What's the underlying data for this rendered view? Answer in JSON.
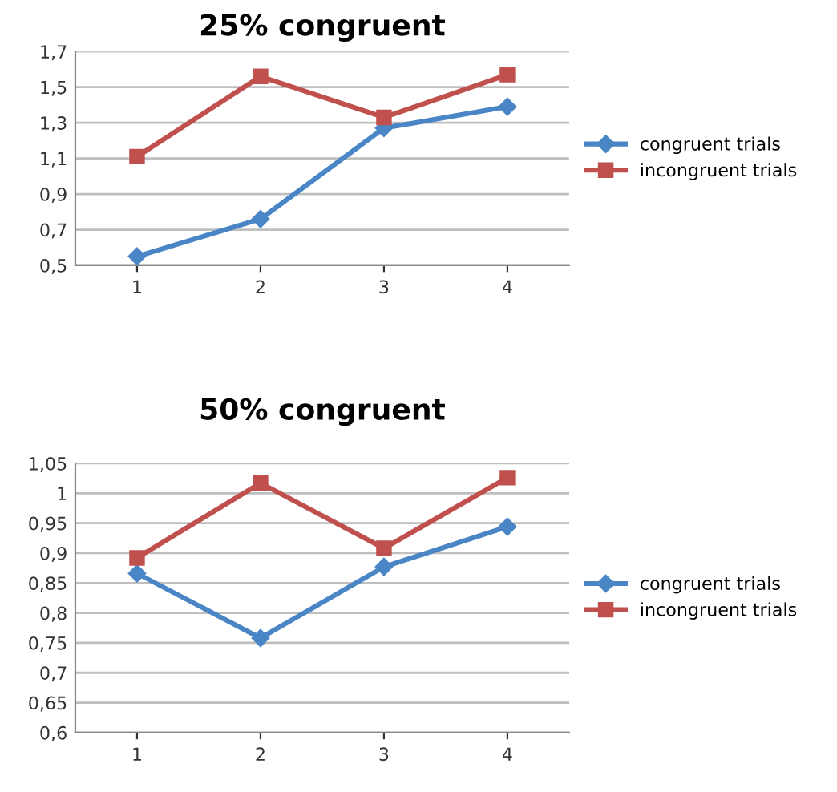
{
  "chart_data": [
    {
      "type": "line",
      "title": "25% congruent",
      "categories": [
        "1",
        "2",
        "3",
        "4"
      ],
      "ylim": [
        0.5,
        1.7
      ],
      "yticks": [
        {
          "value": 0.5,
          "label": "0,5"
        },
        {
          "value": 0.7,
          "label": "0,7"
        },
        {
          "value": 0.9,
          "label": "0,9"
        },
        {
          "value": 1.1,
          "label": "1,1"
        },
        {
          "value": 1.3,
          "label": "1,3"
        },
        {
          "value": 1.5,
          "label": "1,5"
        },
        {
          "value": 1.7,
          "label": "1,7"
        }
      ],
      "grid": "y",
      "legend": "right",
      "series": [
        {
          "name": "congruent trials",
          "color": "#4a86c5",
          "marker": "diamond",
          "values": [
            0.55,
            0.76,
            1.27,
            1.39
          ]
        },
        {
          "name": "incongruent trials",
          "color": "#c0504d",
          "marker": "square",
          "values": [
            1.11,
            1.56,
            1.33,
            1.57
          ]
        }
      ]
    },
    {
      "type": "line",
      "title": "50% congruent",
      "categories": [
        "1",
        "2",
        "3",
        "4"
      ],
      "ylim": [
        0.6,
        1.05
      ],
      "yticks": [
        {
          "value": 0.6,
          "label": "0,6"
        },
        {
          "value": 0.65,
          "label": "0,65"
        },
        {
          "value": 0.7,
          "label": "0,7"
        },
        {
          "value": 0.75,
          "label": "0,75"
        },
        {
          "value": 0.8,
          "label": "0,8"
        },
        {
          "value": 0.85,
          "label": "0,85"
        },
        {
          "value": 0.9,
          "label": "0,9"
        },
        {
          "value": 0.95,
          "label": "0,95"
        },
        {
          "value": 1.0,
          "label": "1"
        },
        {
          "value": 1.05,
          "label": "1,05"
        }
      ],
      "grid": "y",
      "legend": "right",
      "series": [
        {
          "name": "congruent trials",
          "color": "#4a86c5",
          "marker": "diamond",
          "values": [
            0.866,
            0.758,
            0.877,
            0.944
          ]
        },
        {
          "name": "incongruent trials",
          "color": "#c0504d",
          "marker": "square",
          "values": [
            0.892,
            1.017,
            0.908,
            1.026
          ]
        }
      ]
    }
  ]
}
